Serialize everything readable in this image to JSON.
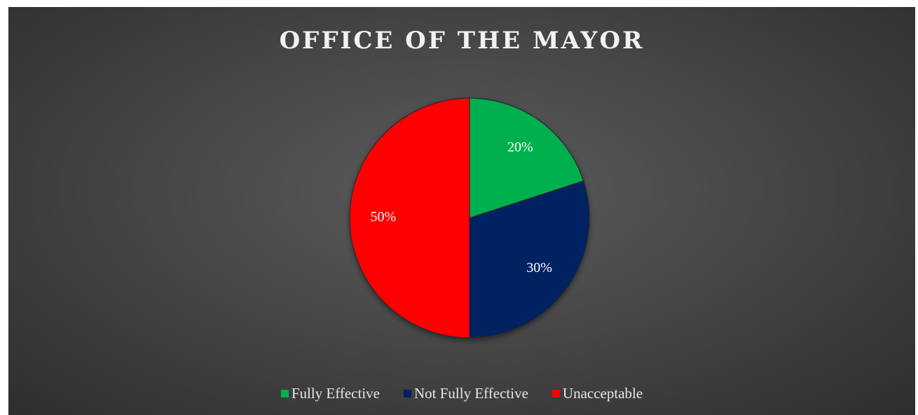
{
  "chart_data": {
    "type": "pie",
    "title": "OFFICE OF THE MAYOR",
    "categories": [
      "Fully Effective",
      "Not Fully Effective",
      "Unacceptable"
    ],
    "values": [
      20,
      30,
      50
    ],
    "data_labels": [
      "20%",
      "30%",
      "50%"
    ],
    "colors": [
      "#00b050",
      "#002060",
      "#ff0000"
    ],
    "legend_position": "bottom"
  }
}
